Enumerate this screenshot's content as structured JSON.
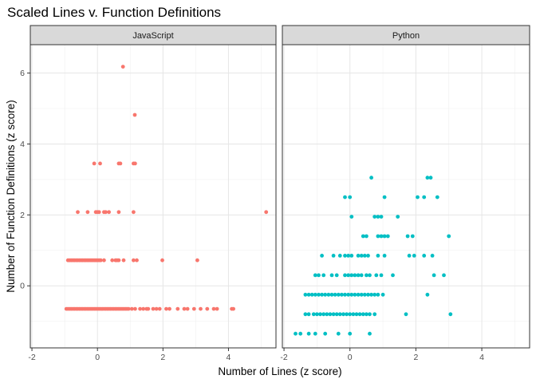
{
  "chart_data": {
    "type": "scatter",
    "title": "Scaled Lines v. Function Definitions",
    "xlabel": "Number of Lines (z score)",
    "ylabel": "Number of Function Definitions (z score)",
    "xlim": [
      -2.05,
      5.45
    ],
    "ylim": [
      -1.75,
      6.8
    ],
    "x_ticks": [
      -2,
      0,
      2,
      4
    ],
    "y_ticks": [
      0,
      2,
      4,
      6
    ],
    "grid": true,
    "legend": "none",
    "facets": [
      {
        "name": "JavaScript",
        "color": "#F8766D",
        "points": [
          [
            0.78,
            6.18
          ],
          [
            1.14,
            4.82
          ],
          [
            -0.1,
            3.45
          ],
          [
            0.08,
            3.45
          ],
          [
            0.65,
            3.45
          ],
          [
            0.7,
            3.45
          ],
          [
            1.1,
            3.45
          ],
          [
            1.15,
            3.45
          ],
          [
            -0.6,
            2.08
          ],
          [
            -0.3,
            2.08
          ],
          [
            -0.05,
            2.08
          ],
          [
            0.0,
            2.08
          ],
          [
            0.05,
            2.08
          ],
          [
            0.2,
            2.08
          ],
          [
            0.25,
            2.08
          ],
          [
            0.35,
            2.08
          ],
          [
            0.65,
            2.08
          ],
          [
            1.1,
            2.08
          ],
          [
            5.15,
            2.08
          ],
          [
            -0.9,
            0.72
          ],
          [
            -0.85,
            0.72
          ],
          [
            -0.8,
            0.72
          ],
          [
            -0.75,
            0.72
          ],
          [
            -0.7,
            0.72
          ],
          [
            -0.65,
            0.72
          ],
          [
            -0.6,
            0.72
          ],
          [
            -0.55,
            0.72
          ],
          [
            -0.5,
            0.72
          ],
          [
            -0.45,
            0.72
          ],
          [
            -0.4,
            0.72
          ],
          [
            -0.35,
            0.72
          ],
          [
            -0.3,
            0.72
          ],
          [
            -0.25,
            0.72
          ],
          [
            -0.2,
            0.72
          ],
          [
            -0.15,
            0.72
          ],
          [
            -0.1,
            0.72
          ],
          [
            -0.05,
            0.72
          ],
          [
            0.0,
            0.72
          ],
          [
            0.05,
            0.72
          ],
          [
            0.1,
            0.72
          ],
          [
            0.2,
            0.72
          ],
          [
            0.45,
            0.72
          ],
          [
            0.55,
            0.72
          ],
          [
            0.6,
            0.72
          ],
          [
            0.65,
            0.72
          ],
          [
            0.8,
            0.72
          ],
          [
            1.1,
            0.72
          ],
          [
            1.2,
            0.72
          ],
          [
            1.98,
            0.72
          ],
          [
            3.05,
            0.72
          ],
          [
            -0.95,
            -0.65
          ],
          [
            -0.9,
            -0.65
          ],
          [
            -0.85,
            -0.65
          ],
          [
            -0.8,
            -0.65
          ],
          [
            -0.75,
            -0.65
          ],
          [
            -0.7,
            -0.65
          ],
          [
            -0.65,
            -0.65
          ],
          [
            -0.6,
            -0.65
          ],
          [
            -0.55,
            -0.65
          ],
          [
            -0.5,
            -0.65
          ],
          [
            -0.45,
            -0.65
          ],
          [
            -0.4,
            -0.65
          ],
          [
            -0.35,
            -0.65
          ],
          [
            -0.3,
            -0.65
          ],
          [
            -0.25,
            -0.65
          ],
          [
            -0.2,
            -0.65
          ],
          [
            -0.15,
            -0.65
          ],
          [
            -0.1,
            -0.65
          ],
          [
            -0.05,
            -0.65
          ],
          [
            0.0,
            -0.65
          ],
          [
            0.05,
            -0.65
          ],
          [
            0.1,
            -0.65
          ],
          [
            0.15,
            -0.65
          ],
          [
            0.2,
            -0.65
          ],
          [
            0.25,
            -0.65
          ],
          [
            0.3,
            -0.65
          ],
          [
            0.35,
            -0.65
          ],
          [
            0.4,
            -0.65
          ],
          [
            0.45,
            -0.65
          ],
          [
            0.5,
            -0.65
          ],
          [
            0.55,
            -0.65
          ],
          [
            0.6,
            -0.65
          ],
          [
            0.65,
            -0.65
          ],
          [
            0.7,
            -0.65
          ],
          [
            0.75,
            -0.65
          ],
          [
            0.8,
            -0.65
          ],
          [
            0.85,
            -0.65
          ],
          [
            0.9,
            -0.65
          ],
          [
            0.95,
            -0.65
          ],
          [
            1.05,
            -0.65
          ],
          [
            1.15,
            -0.65
          ],
          [
            1.3,
            -0.65
          ],
          [
            1.4,
            -0.65
          ],
          [
            1.5,
            -0.65
          ],
          [
            1.55,
            -0.65
          ],
          [
            1.7,
            -0.65
          ],
          [
            1.8,
            -0.65
          ],
          [
            1.9,
            -0.65
          ],
          [
            2.1,
            -0.65
          ],
          [
            2.2,
            -0.65
          ],
          [
            2.45,
            -0.65
          ],
          [
            2.65,
            -0.65
          ],
          [
            2.75,
            -0.65
          ],
          [
            2.95,
            -0.65
          ],
          [
            3.15,
            -0.65
          ],
          [
            3.35,
            -0.65
          ],
          [
            3.55,
            -0.65
          ],
          [
            3.65,
            -0.65
          ],
          [
            4.1,
            -0.65
          ],
          [
            4.15,
            -0.65
          ]
        ]
      },
      {
        "name": "Python",
        "color": "#00BFC4",
        "points": [
          [
            0.65,
            3.05
          ],
          [
            2.35,
            3.05
          ],
          [
            2.45,
            3.05
          ],
          [
            -0.15,
            2.5
          ],
          [
            0.0,
            2.5
          ],
          [
            1.05,
            2.5
          ],
          [
            2.05,
            2.5
          ],
          [
            2.25,
            2.5
          ],
          [
            2.65,
            2.5
          ],
          [
            0.05,
            1.95
          ],
          [
            0.75,
            1.95
          ],
          [
            0.85,
            1.95
          ],
          [
            0.95,
            1.95
          ],
          [
            1.45,
            1.95
          ],
          [
            0.4,
            1.4
          ],
          [
            0.5,
            1.4
          ],
          [
            0.85,
            1.4
          ],
          [
            0.95,
            1.4
          ],
          [
            1.05,
            1.4
          ],
          [
            1.15,
            1.4
          ],
          [
            1.75,
            1.4
          ],
          [
            1.9,
            1.4
          ],
          [
            3.0,
            1.4
          ],
          [
            -0.85,
            0.85
          ],
          [
            -0.5,
            0.85
          ],
          [
            -0.3,
            0.85
          ],
          [
            -0.15,
            0.85
          ],
          [
            -0.05,
            0.85
          ],
          [
            0.05,
            0.85
          ],
          [
            0.25,
            0.85
          ],
          [
            0.35,
            0.85
          ],
          [
            0.45,
            0.85
          ],
          [
            0.55,
            0.85
          ],
          [
            0.85,
            0.85
          ],
          [
            1.05,
            0.85
          ],
          [
            1.8,
            0.85
          ],
          [
            1.95,
            0.85
          ],
          [
            2.25,
            0.85
          ],
          [
            2.5,
            0.85
          ],
          [
            -1.05,
            0.3
          ],
          [
            -0.95,
            0.3
          ],
          [
            -0.8,
            0.3
          ],
          [
            -0.55,
            0.3
          ],
          [
            -0.4,
            0.3
          ],
          [
            -0.15,
            0.3
          ],
          [
            -0.05,
            0.3
          ],
          [
            0.05,
            0.3
          ],
          [
            0.15,
            0.3
          ],
          [
            0.25,
            0.3
          ],
          [
            0.35,
            0.3
          ],
          [
            0.5,
            0.3
          ],
          [
            0.6,
            0.3
          ],
          [
            0.8,
            0.3
          ],
          [
            0.95,
            0.3
          ],
          [
            1.3,
            0.3
          ],
          [
            2.55,
            0.3
          ],
          [
            2.85,
            0.3
          ],
          [
            -1.35,
            -0.25
          ],
          [
            -1.25,
            -0.25
          ],
          [
            -1.15,
            -0.25
          ],
          [
            -1.05,
            -0.25
          ],
          [
            -0.95,
            -0.25
          ],
          [
            -0.85,
            -0.25
          ],
          [
            -0.75,
            -0.25
          ],
          [
            -0.65,
            -0.25
          ],
          [
            -0.55,
            -0.25
          ],
          [
            -0.45,
            -0.25
          ],
          [
            -0.35,
            -0.25
          ],
          [
            -0.25,
            -0.25
          ],
          [
            -0.15,
            -0.25
          ],
          [
            -0.05,
            -0.25
          ],
          [
            0.05,
            -0.25
          ],
          [
            0.15,
            -0.25
          ],
          [
            0.25,
            -0.25
          ],
          [
            0.35,
            -0.25
          ],
          [
            0.45,
            -0.25
          ],
          [
            0.55,
            -0.25
          ],
          [
            0.65,
            -0.25
          ],
          [
            0.75,
            -0.25
          ],
          [
            0.85,
            -0.25
          ],
          [
            1.0,
            -0.25
          ],
          [
            2.35,
            -0.25
          ],
          [
            -1.35,
            -0.8
          ],
          [
            -1.25,
            -0.8
          ],
          [
            -1.1,
            -0.8
          ],
          [
            -1.0,
            -0.8
          ],
          [
            -0.9,
            -0.8
          ],
          [
            -0.8,
            -0.8
          ],
          [
            -0.7,
            -0.8
          ],
          [
            -0.6,
            -0.8
          ],
          [
            -0.5,
            -0.8
          ],
          [
            -0.4,
            -0.8
          ],
          [
            -0.3,
            -0.8
          ],
          [
            -0.2,
            -0.8
          ],
          [
            -0.1,
            -0.8
          ],
          [
            0.0,
            -0.8
          ],
          [
            0.1,
            -0.8
          ],
          [
            0.2,
            -0.8
          ],
          [
            0.3,
            -0.8
          ],
          [
            0.4,
            -0.8
          ],
          [
            0.5,
            -0.8
          ],
          [
            0.6,
            -0.8
          ],
          [
            0.75,
            -0.8
          ],
          [
            1.7,
            -0.8
          ],
          [
            3.05,
            -0.8
          ],
          [
            -1.65,
            -1.35
          ],
          [
            -1.5,
            -1.35
          ],
          [
            -1.25,
            -1.35
          ],
          [
            -1.05,
            -1.35
          ],
          [
            -0.75,
            -1.35
          ],
          [
            -0.35,
            -1.35
          ],
          [
            0.0,
            -1.35
          ],
          [
            0.6,
            -1.35
          ]
        ]
      }
    ]
  }
}
